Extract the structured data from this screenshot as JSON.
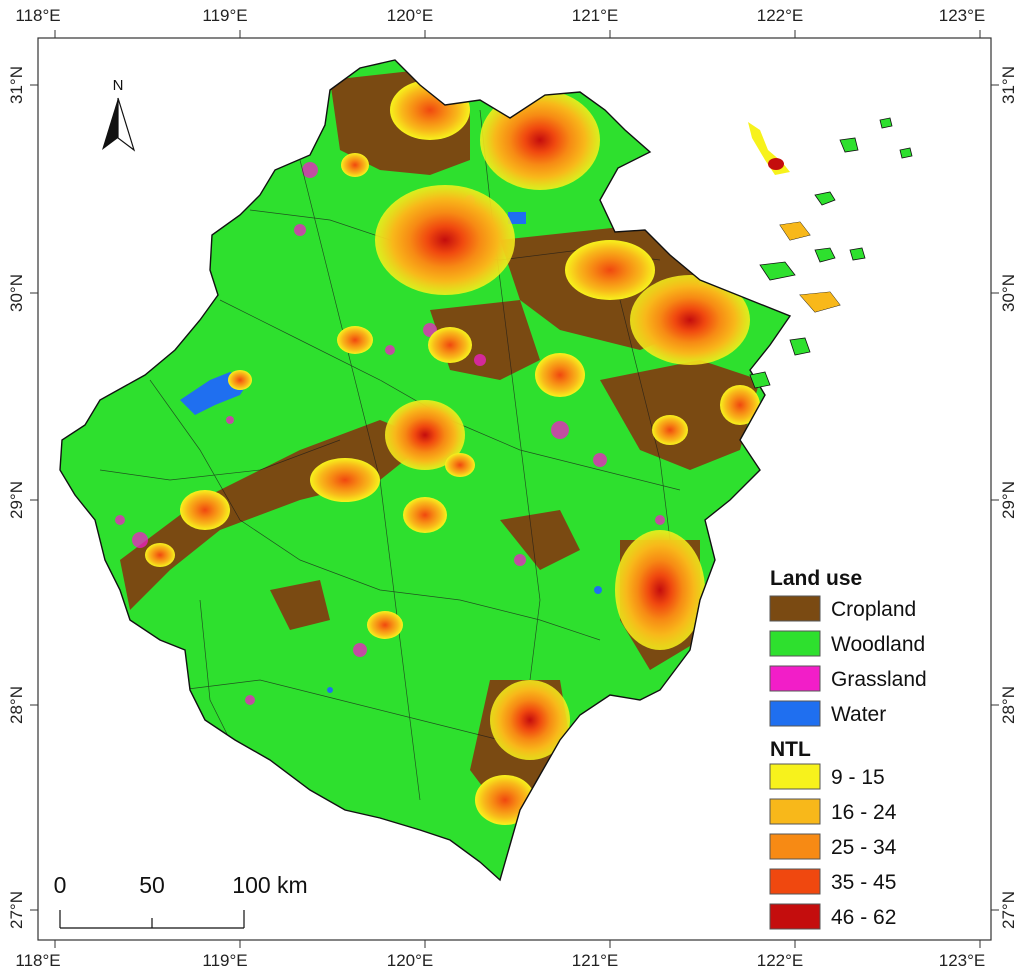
{
  "map": {
    "lon_ticks": [
      "118°E",
      "119°E",
      "120°E",
      "121°E",
      "122°E",
      "123°E"
    ],
    "lat_ticks": [
      "31°N",
      "30°N",
      "29°N",
      "28°N",
      "27°N"
    ],
    "north_arrow": {
      "label": "N",
      "icon": "north-arrow-icon"
    },
    "scale_bar": {
      "labels": [
        "0",
        "50",
        "100 km"
      ]
    },
    "legend": {
      "land_use": {
        "title": "Land use",
        "items": [
          {
            "label": "Cropland",
            "color": "#7a4a12"
          },
          {
            "label": "Woodland",
            "color": "#2ee02e"
          },
          {
            "label": "Grassland",
            "color": "#f21ec8"
          },
          {
            "label": "Water",
            "color": "#1f6ff0"
          }
        ]
      },
      "ntl": {
        "title": "NTL",
        "items": [
          {
            "label": "9 - 15",
            "color": "#f7f21c"
          },
          {
            "label": "16 - 24",
            "color": "#f8b81a"
          },
          {
            "label": "25 - 34",
            "color": "#f78a14"
          },
          {
            "label": "35 - 45",
            "color": "#f0480f"
          },
          {
            "label": "46 - 62",
            "color": "#c40d0d"
          }
        ]
      }
    }
  }
}
